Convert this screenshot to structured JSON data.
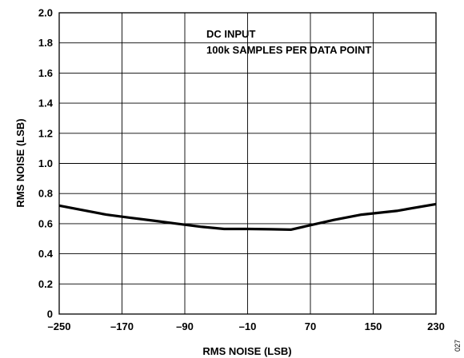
{
  "chart_data": {
    "type": "line",
    "title": "",
    "xlabel": "RMS NOISE (LSB)",
    "ylabel": "RMS NOISE (LSB)",
    "xlim": [
      -250,
      230
    ],
    "ylim": [
      0,
      2.0
    ],
    "x_ticks": [
      -250,
      -170,
      -90,
      -10,
      70,
      150,
      230
    ],
    "x_tick_labels": [
      "–250",
      "–170",
      "–90",
      "–10",
      "70",
      "150",
      "230"
    ],
    "y_ticks": [
      0,
      0.2,
      0.4,
      0.6,
      0.8,
      1.0,
      1.2,
      1.4,
      1.6,
      1.8,
      2.0
    ],
    "y_tick_labels": [
      "0",
      "0.2",
      "0.4",
      "0.6",
      "0.8",
      "1.0",
      "1.2",
      "1.4",
      "1.6",
      "1.8",
      "2.0"
    ],
    "grid": true,
    "annotations": [
      "DC INPUT",
      "100k SAMPLES PER DATA POINT"
    ],
    "series": [
      {
        "x": [
          -250,
          -220,
          -190,
          -160,
          -130,
          -100,
          -70,
          -40,
          -10,
          20,
          45,
          70,
          100,
          135,
          180,
          230
        ],
        "y": [
          0.72,
          0.69,
          0.66,
          0.64,
          0.62,
          0.6,
          0.58,
          0.565,
          0.565,
          0.563,
          0.56,
          0.59,
          0.625,
          0.66,
          0.685,
          0.73
        ]
      }
    ]
  },
  "figure_id": "027"
}
